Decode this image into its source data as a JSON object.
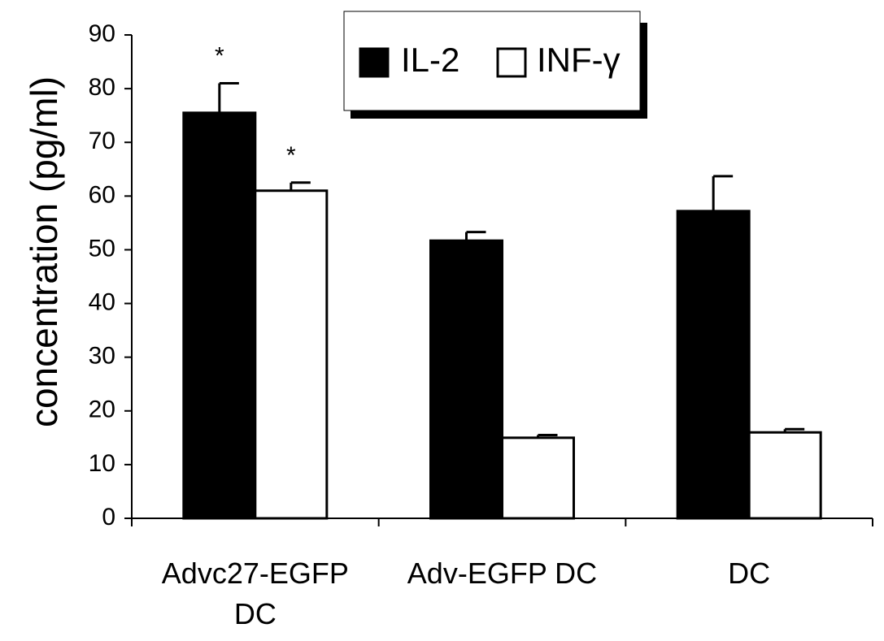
{
  "chart_data": {
    "type": "bar",
    "categories": [
      [
        "Advc27-EGFP",
        "DC"
      ],
      [
        "Adv-EGFP DC"
      ],
      [
        "DC"
      ]
    ],
    "series": [
      {
        "name": "IL-2",
        "values": [
          75.5,
          51.7,
          57.2
        ],
        "errors": [
          5.5,
          1.6,
          6.5
        ],
        "fill": "#000000",
        "significance": [
          "*",
          "",
          ""
        ]
      },
      {
        "name": "INF-γ",
        "values": [
          61.0,
          15.0,
          16.0
        ],
        "errors": [
          1.5,
          0.5,
          0.6
        ],
        "fill": "#ffffff",
        "significance": [
          "*",
          "",
          ""
        ]
      }
    ],
    "ylabel": "concentration (pg/ml)",
    "xlabel": "",
    "ylim": [
      0,
      90
    ],
    "yticks": [
      0,
      10,
      20,
      30,
      40,
      50,
      60,
      70,
      80,
      90
    ],
    "grid": false,
    "legend_position": "top-center"
  }
}
